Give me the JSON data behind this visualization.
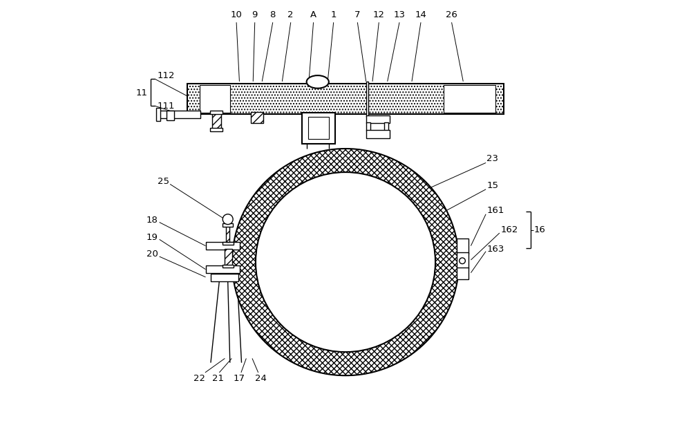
{
  "bg_color": "#ffffff",
  "line_color": "#000000",
  "fig_width": 10.0,
  "fig_height": 6.22,
  "dpi": 100
}
